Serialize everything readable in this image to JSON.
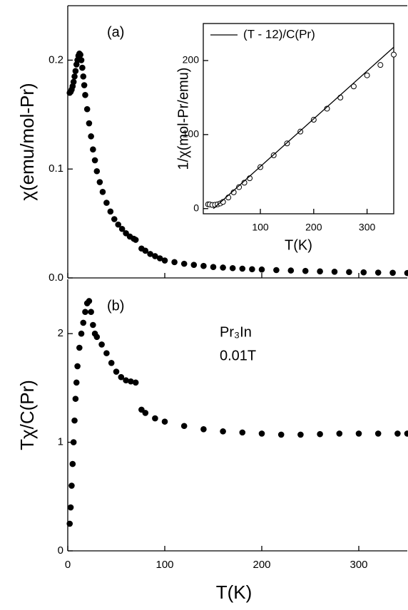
{
  "chart_data": [
    {
      "type": "scatter",
      "label": "(a)",
      "ylabel": "χ(emu/mol-Pr)",
      "xlim": [
        0,
        350
      ],
      "xticks": [
        0,
        100,
        200,
        300
      ],
      "ylim": [
        0,
        0.25
      ],
      "yticks": [
        {
          "value": 0,
          "label": "0.0"
        },
        0.1,
        0.2
      ],
      "grid": false,
      "series": [
        {
          "style": "filled-circle",
          "color": "#000000",
          "x": [
            2,
            3,
            4,
            5,
            6,
            7,
            8,
            9,
            10,
            11,
            12,
            13,
            14,
            15,
            16,
            17,
            18,
            20,
            22,
            24,
            26,
            28,
            30,
            33,
            36,
            40,
            44,
            48,
            52,
            56,
            60,
            64,
            68,
            70,
            76,
            80,
            85,
            90,
            95,
            100,
            110,
            120,
            130,
            140,
            150,
            160,
            170,
            180,
            190,
            200,
            215,
            230,
            245,
            260,
            275,
            290,
            305,
            320,
            335,
            350
          ],
          "values": [
            0.17,
            0.171,
            0.173,
            0.176,
            0.18,
            0.185,
            0.19,
            0.196,
            0.2,
            0.204,
            0.206,
            0.205,
            0.2,
            0.193,
            0.185,
            0.177,
            0.168,
            0.155,
            0.142,
            0.13,
            0.118,
            0.108,
            0.098,
            0.088,
            0.079,
            0.069,
            0.061,
            0.054,
            0.049,
            0.045,
            0.041,
            0.038,
            0.036,
            0.035,
            0.027,
            0.025,
            0.022,
            0.02,
            0.018,
            0.016,
            0.0145,
            0.013,
            0.012,
            0.011,
            0.01,
            0.0095,
            0.009,
            0.0085,
            0.008,
            0.0077,
            0.0072,
            0.0068,
            0.0064,
            0.006,
            0.0057,
            0.0054,
            0.0051,
            0.0049,
            0.0047,
            0.0045
          ]
        }
      ]
    },
    {
      "type": "scatter",
      "label": "(b)",
      "ylabel": "Tχ/C(Pr)",
      "xlabel": "T(K)",
      "annotations": [
        "Pr₃In",
        "0.01T"
      ],
      "xlim": [
        0,
        350
      ],
      "xticks": [
        0,
        100,
        200,
        300
      ],
      "ylim": [
        0,
        2.5
      ],
      "yticks": [
        0,
        1,
        2
      ],
      "grid": false,
      "series": [
        {
          "style": "filled-circle",
          "color": "#000000",
          "x": [
            2,
            3,
            4,
            5,
            6,
            7,
            8,
            9,
            10,
            12,
            14,
            16,
            18,
            20,
            22,
            24,
            26,
            28,
            30,
            35,
            40,
            45,
            50,
            55,
            60,
            65,
            70,
            76,
            80,
            90,
            100,
            120,
            140,
            160,
            180,
            200,
            220,
            240,
            260,
            280,
            300,
            320,
            340,
            350
          ],
          "values": [
            0.25,
            0.4,
            0.6,
            0.8,
            1.0,
            1.2,
            1.4,
            1.55,
            1.7,
            1.87,
            2.0,
            2.1,
            2.2,
            2.28,
            2.3,
            2.2,
            2.08,
            2.0,
            1.97,
            1.9,
            1.82,
            1.73,
            1.65,
            1.6,
            1.57,
            1.56,
            1.55,
            1.3,
            1.27,
            1.22,
            1.19,
            1.15,
            1.12,
            1.1,
            1.09,
            1.08,
            1.07,
            1.07,
            1.075,
            1.08,
            1.08,
            1.08,
            1.08,
            1.08
          ]
        }
      ]
    },
    {
      "type": "scatter",
      "ylabel": "1/χ(mol-Pr/emu)",
      "xlabel": "T(K)",
      "xlim": [
        -7,
        350
      ],
      "xticks": [
        100,
        200,
        300
      ],
      "ylim": [
        -7,
        250
      ],
      "yticks": [
        0,
        100,
        200
      ],
      "grid": false,
      "legend": "top-left",
      "series": [
        {
          "style": "open-circle",
          "color": "#000000",
          "x": [
            2,
            5,
            10,
            15,
            20,
            25,
            30,
            40,
            50,
            60,
            70,
            80,
            100,
            125,
            150,
            175,
            200,
            225,
            250,
            275,
            300,
            325,
            350
          ],
          "values": [
            5.8,
            5.6,
            4.9,
            5.1,
            5.8,
            7,
            9,
            15,
            22,
            29,
            35,
            41,
            56,
            72,
            88,
            104,
            120,
            135,
            150,
            165,
            180,
            194,
            208
          ]
        },
        {
          "name": "(T - 12)/C(Pr)",
          "style": "line",
          "color": "#000000",
          "x": [
            12,
            350
          ],
          "values": [
            0,
            218
          ]
        }
      ]
    }
  ]
}
